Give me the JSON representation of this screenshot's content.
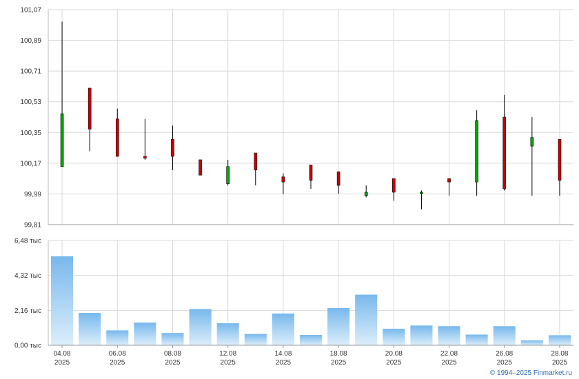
{
  "chart_data": [
    {
      "type": "candlestick",
      "ylim": [
        99.81,
        101.07
      ],
      "yticks": [
        "101,07",
        "100,89",
        "100,71",
        "100,53",
        "100,35",
        "100,17",
        "99,99",
        "99,81"
      ],
      "ytick_values": [
        101.07,
        100.89,
        100.71,
        100.53,
        100.35,
        100.17,
        99.99,
        99.81
      ],
      "up_color": "#00aa00",
      "down_color": "#cc0000",
      "candles": [
        {
          "date": "04.08.2025",
          "open": 100.15,
          "high": 101.0,
          "low": 100.15,
          "close": 100.46
        },
        {
          "date": "05.08.2025",
          "open": 100.61,
          "high": 100.61,
          "low": 100.24,
          "close": 100.37
        },
        {
          "date": "06.08.2025",
          "open": 100.43,
          "high": 100.49,
          "low": 100.21,
          "close": 100.21
        },
        {
          "date": "07.08.2025",
          "open": 100.21,
          "high": 100.43,
          "low": 100.19,
          "close": 100.2
        },
        {
          "date": "08.08.2025",
          "open": 100.31,
          "high": 100.39,
          "low": 100.13,
          "close": 100.21
        },
        {
          "date": "11.08.2025",
          "open": 100.19,
          "high": 100.19,
          "low": 100.1,
          "close": 100.1
        },
        {
          "date": "12.08.2025",
          "open": 100.05,
          "high": 100.19,
          "low": 100.04,
          "close": 100.15
        },
        {
          "date": "13.08.2025",
          "open": 100.23,
          "high": 100.23,
          "low": 100.04,
          "close": 100.13
        },
        {
          "date": "14.08.2025",
          "open": 100.09,
          "high": 100.11,
          "low": 99.99,
          "close": 100.06
        },
        {
          "date": "15.08.2025",
          "open": 100.16,
          "high": 100.16,
          "low": 100.02,
          "close": 100.07
        },
        {
          "date": "18.08.2025",
          "open": 100.12,
          "high": 100.12,
          "low": 99.99,
          "close": 100.04
        },
        {
          "date": "19.08.2025",
          "open": 99.98,
          "high": 100.04,
          "low": 99.97,
          "close": 100.0
        },
        {
          "date": "20.08.2025",
          "open": 100.08,
          "high": 100.08,
          "low": 99.95,
          "close": 100.0
        },
        {
          "date": "21.08.2025",
          "open": 100.0,
          "high": 100.01,
          "low": 99.9,
          "close": 100.0
        },
        {
          "date": "22.08.2025",
          "open": 100.08,
          "high": 100.08,
          "low": 99.98,
          "close": 100.06
        },
        {
          "date": "25.08.2025",
          "open": 100.06,
          "high": 100.48,
          "low": 99.98,
          "close": 100.42
        },
        {
          "date": "26.08.2025",
          "open": 100.44,
          "high": 100.57,
          "low": 100.01,
          "close": 100.02
        },
        {
          "date": "27.08.2025",
          "open": 100.27,
          "high": 100.44,
          "low": 99.98,
          "close": 100.32
        },
        {
          "date": "28.08.2025",
          "open": 100.31,
          "high": 100.31,
          "low": 99.98,
          "close": 100.07
        }
      ]
    },
    {
      "type": "bar",
      "ylim": [
        0,
        6480
      ],
      "yticks": [
        "6,48 тыс",
        "4,32 тыс",
        "2,16 тыс",
        "0,00 тыс"
      ],
      "ytick_values": [
        6480,
        4320,
        2160,
        0
      ],
      "bar_color_top": "#78b8ec",
      "bar_color_bottom": "#dceefb",
      "categories": [
        "04.08.2025",
        "05.08.2025",
        "06.08.2025",
        "07.08.2025",
        "08.08.2025",
        "11.08.2025",
        "12.08.2025",
        "13.08.2025",
        "14.08.2025",
        "15.08.2025",
        "18.08.2025",
        "19.08.2025",
        "20.08.2025",
        "21.08.2025",
        "22.08.2025",
        "25.08.2025",
        "26.08.2025",
        "27.08.2025",
        "28.08.2025"
      ],
      "values": [
        5500,
        2000,
        920,
        1400,
        760,
        2240,
        1360,
        700,
        1960,
        640,
        2300,
        3130,
        1020,
        1220,
        1180,
        660,
        1180,
        300,
        620
      ]
    }
  ],
  "x_axis": {
    "labels": [
      {
        "day": "04.08",
        "year": "2025"
      },
      {
        "day": "06.08",
        "year": "2025"
      },
      {
        "day": "08.08",
        "year": "2025"
      },
      {
        "day": "12.08",
        "year": "2025"
      },
      {
        "day": "14.08",
        "year": "2025"
      },
      {
        "day": "18.08",
        "year": "2025"
      },
      {
        "day": "20.08",
        "year": "2025"
      },
      {
        "day": "22.08",
        "year": "2025"
      },
      {
        "day": "26.08",
        "year": "2025"
      },
      {
        "day": "28.08",
        "year": "2025"
      }
    ],
    "label_at_index": [
      0,
      2,
      4,
      6,
      8,
      10,
      12,
      14,
      16,
      18
    ]
  },
  "footer": {
    "copyright": "© 1994–2025 Finmarket.ru"
  }
}
